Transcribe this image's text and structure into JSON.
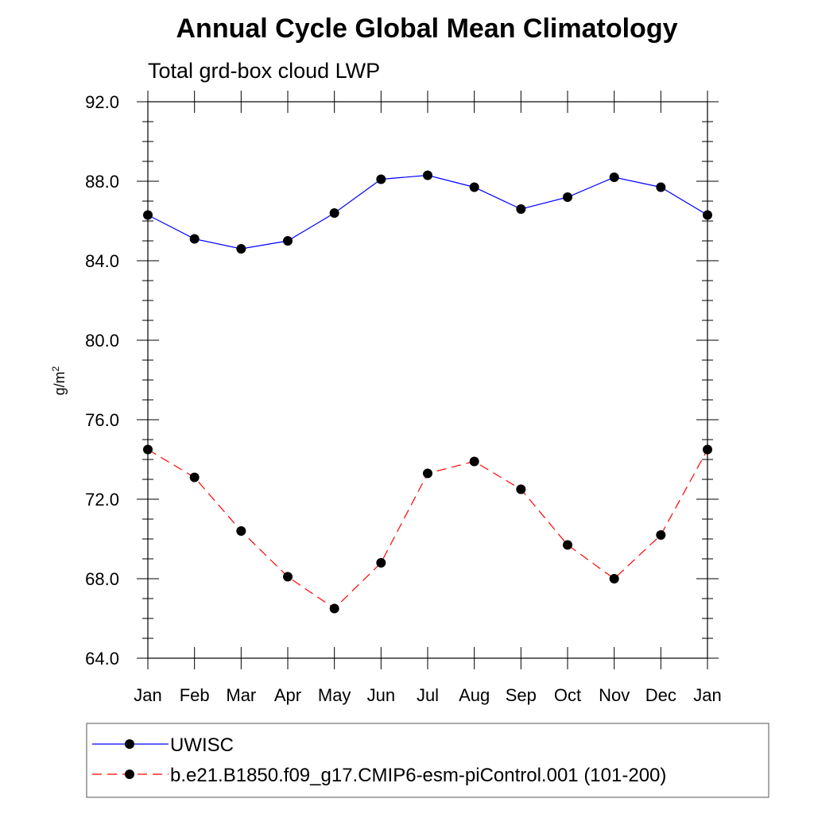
{
  "chart_data": {
    "type": "line",
    "title": "Annual Cycle Global Mean Climatology",
    "subtitle": "Total grd-box cloud LWP",
    "ylabel_base": "g/m",
    "ylabel_sup": "2",
    "ylim": [
      64,
      92
    ],
    "yticks": [
      "64.0",
      "68.0",
      "72.0",
      "76.0",
      "80.0",
      "84.0",
      "88.0",
      "92.0"
    ],
    "ytick_values": [
      64,
      68,
      72,
      76,
      80,
      84,
      88,
      92
    ],
    "ytick_minor_step": 1,
    "categories": [
      "Jan",
      "Feb",
      "Mar",
      "Apr",
      "May",
      "Jun",
      "Jul",
      "Aug",
      "Sep",
      "Oct",
      "Nov",
      "Dec",
      "Jan"
    ],
    "grid": false,
    "legend_position": "bottom",
    "series": [
      {
        "name": "UWISC",
        "color": "#0000ff",
        "dash": "solid",
        "values": [
          86.3,
          85.1,
          84.6,
          85.0,
          86.4,
          88.1,
          88.3,
          87.7,
          86.6,
          87.2,
          88.2,
          87.7,
          86.3
        ]
      },
      {
        "name": "b.e21.B1850.f09_g17.CMIP6-esm-piControl.001 (101-200)",
        "color": "#ff0000",
        "dash": "dashed",
        "values": [
          74.5,
          73.1,
          70.4,
          68.1,
          66.5,
          68.8,
          73.3,
          73.9,
          72.5,
          69.7,
          68.0,
          70.2,
          74.5
        ]
      }
    ]
  }
}
